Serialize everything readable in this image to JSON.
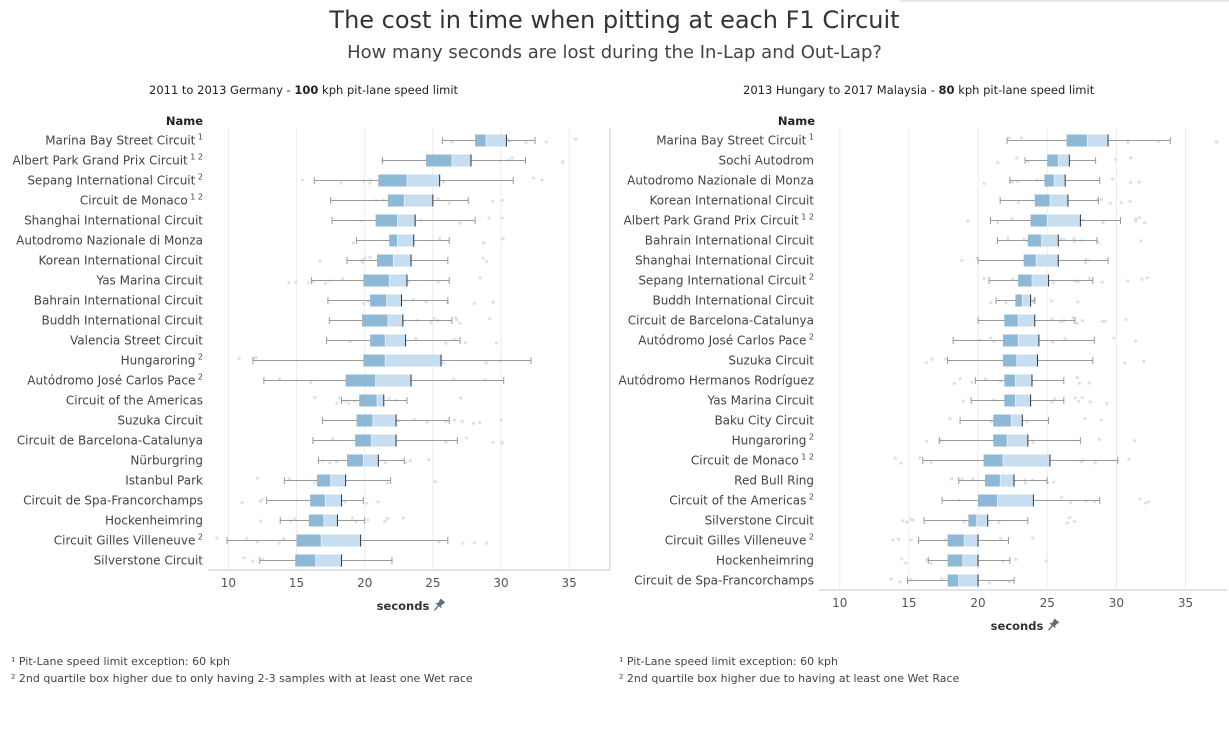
{
  "title": "The cost in time when pitting at each F1 Circuit",
  "subtitle": "How many seconds are lost during the In-Lap and Out-Lap?",
  "left_panel": {
    "title_pre": "2011 to 2013 Germany - ",
    "title_bold": "100",
    "title_post": " kph pit-lane speed limit",
    "row_header": "Name",
    "axis_title": "seconds",
    "footnote1": "¹ Pit-Lane speed limit exception: 60 kph",
    "footnote2": "² 2nd quartile box higher due to only having 2-3 samples with at least one Wet race"
  },
  "right_panel": {
    "title_pre": "2013 Hungary to 2017 Malaysia - ",
    "title_bold": "80",
    "title_post": " kph pit-lane speed limit",
    "row_header": "Name",
    "axis_title": "seconds",
    "footnote1": "¹ Pit-Lane speed limit exception: 60 kph",
    "footnote2": "² 2nd quartile box higher due to having at least one Wet Race"
  },
  "colors": {
    "q2_box": "#8db8d6",
    "q3_box": "#c6def0",
    "whisker": "#9a9a9a",
    "dots": "#d8e2ea",
    "gridline": "#ececec"
  },
  "chart_data": [
    {
      "type": "boxplot",
      "panel": "left",
      "xlabel": "seconds",
      "ylabel": "Name",
      "xlim": [
        8.5,
        38
      ],
      "xticks": [
        10,
        15,
        20,
        25,
        30,
        35
      ],
      "grid": true,
      "rows": [
        {
          "name": "Marina Bay Street Circuit",
          "sup": "1",
          "min": 25.7,
          "q1": 28.1,
          "median": 28.9,
          "q3": 30.4,
          "max": 32.5
        },
        {
          "name": "Albert Park Grand Prix Circuit",
          "sup": "1 2",
          "min": 21.3,
          "q1": 24.5,
          "median": 26.4,
          "q3": 27.8,
          "max": 31.8
        },
        {
          "name": "Sepang International Circuit",
          "sup": "2",
          "min": 16.3,
          "q1": 21.0,
          "median": 23.1,
          "q3": 25.5,
          "max": 30.9
        },
        {
          "name": "Circuit de Monaco",
          "sup": "1 2",
          "min": 17.5,
          "q1": 21.7,
          "median": 22.9,
          "q3": 25.0,
          "max": 27.6
        },
        {
          "name": "Shanghai International Circuit",
          "sup": "",
          "min": 17.6,
          "q1": 20.8,
          "median": 22.4,
          "q3": 23.7,
          "max": 28.1
        },
        {
          "name": "Autodromo Nazionale di Monza",
          "sup": "",
          "min": 19.4,
          "q1": 21.8,
          "median": 22.4,
          "q3": 23.6,
          "max": 26.2
        },
        {
          "name": "Korean International Circuit",
          "sup": "",
          "min": 18.7,
          "q1": 20.9,
          "median": 22.1,
          "q3": 23.4,
          "max": 26.1
        },
        {
          "name": "Yas Marina Circuit",
          "sup": "",
          "min": 16.1,
          "q1": 19.9,
          "median": 21.8,
          "q3": 23.1,
          "max": 26.2
        },
        {
          "name": "Bahrain International Circuit",
          "sup": "",
          "min": 17.3,
          "q1": 20.4,
          "median": 21.6,
          "q3": 22.7,
          "max": 26.1
        },
        {
          "name": "Buddh International Circuit",
          "sup": "",
          "min": 17.4,
          "q1": 19.8,
          "median": 21.7,
          "q3": 22.8,
          "max": 26.4
        },
        {
          "name": "Valencia Street Circuit",
          "sup": "",
          "min": 17.2,
          "q1": 20.4,
          "median": 21.5,
          "q3": 23.0,
          "max": 27.0
        },
        {
          "name": "Hungaroring",
          "sup": "2",
          "min": 11.8,
          "q1": 19.9,
          "median": 21.5,
          "q3": 25.6,
          "max": 32.2
        },
        {
          "name": "Autódromo José Carlos Pace",
          "sup": "2",
          "min": 12.6,
          "q1": 18.6,
          "median": 20.8,
          "q3": 23.4,
          "max": 30.2
        },
        {
          "name": "Circuit of the Americas",
          "sup": "",
          "min": 18.3,
          "q1": 19.6,
          "median": 20.9,
          "q3": 21.4,
          "max": 23.1
        },
        {
          "name": "Suzuka Circuit",
          "sup": "",
          "min": 16.9,
          "q1": 19.4,
          "median": 20.6,
          "q3": 22.3,
          "max": 26.2
        },
        {
          "name": "Circuit de Barcelona-Catalunya",
          "sup": "",
          "min": 16.2,
          "q1": 19.3,
          "median": 20.5,
          "q3": 22.3,
          "max": 26.8
        },
        {
          "name": "Nürburgring",
          "sup": "",
          "min": 16.6,
          "q1": 18.7,
          "median": 19.9,
          "q3": 21.0,
          "max": 22.9
        },
        {
          "name": "Istanbul Park",
          "sup": "",
          "min": 14.1,
          "q1": 16.5,
          "median": 17.5,
          "q3": 18.6,
          "max": 21.9
        },
        {
          "name": "Circuit de Spa-Francorchamps",
          "sup": "",
          "min": 12.8,
          "q1": 16.0,
          "median": 17.1,
          "q3": 18.3,
          "max": 19.9
        },
        {
          "name": "Hockenheimring",
          "sup": "",
          "min": 13.8,
          "q1": 15.9,
          "median": 17.0,
          "q3": 18.0,
          "max": 20.0
        },
        {
          "name": "Circuit Gilles Villeneuve",
          "sup": "2",
          "min": 9.9,
          "q1": 15.0,
          "median": 16.8,
          "q3": 19.7,
          "max": 26.1
        },
        {
          "name": "Silverstone Circuit",
          "sup": "",
          "min": 12.3,
          "q1": 14.9,
          "median": 16.4,
          "q3": 18.3,
          "max": 22.0
        }
      ]
    },
    {
      "type": "boxplot",
      "panel": "right",
      "xlabel": "seconds",
      "ylabel": "Name",
      "xlim": [
        8.5,
        38
      ],
      "xticks": [
        10,
        15,
        20,
        25,
        30,
        35
      ],
      "grid": true,
      "rows": [
        {
          "name": "Marina Bay Street Circuit",
          "sup": "1",
          "min": 22.1,
          "q1": 26.4,
          "median": 27.9,
          "q3": 29.4,
          "max": 33.9
        },
        {
          "name": "Sochi Autodrom",
          "sup": "",
          "min": 23.4,
          "q1": 25.0,
          "median": 25.8,
          "q3": 26.6,
          "max": 28.5
        },
        {
          "name": "Autodromo Nazionale di Monza",
          "sup": "",
          "min": 22.3,
          "q1": 24.8,
          "median": 25.5,
          "q3": 26.3,
          "max": 28.8
        },
        {
          "name": "Korean International Circuit",
          "sup": "",
          "min": 21.6,
          "q1": 24.1,
          "median": 25.2,
          "q3": 26.5,
          "max": 28.7
        },
        {
          "name": "Albert Park Grand Prix Circuit",
          "sup": "1 2",
          "min": 20.9,
          "q1": 23.8,
          "median": 25.0,
          "q3": 27.4,
          "max": 30.3
        },
        {
          "name": "Bahrain International Circuit",
          "sup": "",
          "min": 21.4,
          "q1": 23.6,
          "median": 24.6,
          "q3": 25.8,
          "max": 28.6
        },
        {
          "name": "Shanghai International Circuit",
          "sup": "",
          "min": 20.0,
          "q1": 23.3,
          "median": 24.2,
          "q3": 25.8,
          "max": 29.4
        },
        {
          "name": "Sepang International Circuit",
          "sup": "2",
          "min": 20.8,
          "q1": 22.9,
          "median": 23.9,
          "q3": 25.1,
          "max": 28.3
        },
        {
          "name": "Buddh International Circuit",
          "sup": "",
          "min": 21.3,
          "q1": 22.7,
          "median": 23.2,
          "q3": 23.8,
          "max": 24.1
        },
        {
          "name": "Circuit de Barcelona-Catalunya",
          "sup": "",
          "min": 20.0,
          "q1": 21.9,
          "median": 22.9,
          "q3": 24.1,
          "max": 27.0
        },
        {
          "name": "Autódromo José Carlos Pace",
          "sup": "2",
          "min": 18.2,
          "q1": 21.8,
          "median": 22.9,
          "q3": 24.4,
          "max": 28.4
        },
        {
          "name": "Suzuka Circuit",
          "sup": "",
          "min": 17.8,
          "q1": 21.8,
          "median": 22.8,
          "q3": 24.3,
          "max": 28.3
        },
        {
          "name": "Autódromo Hermanos Rodríguez",
          "sup": "",
          "min": 19.8,
          "q1": 21.9,
          "median": 22.7,
          "q3": 23.9,
          "max": 26.2
        },
        {
          "name": "Yas Marina Circuit",
          "sup": "",
          "min": 19.5,
          "q1": 21.9,
          "median": 22.7,
          "q3": 23.8,
          "max": 26.2
        },
        {
          "name": "Baku City Circuit",
          "sup": "",
          "min": 18.7,
          "q1": 21.1,
          "median": 22.4,
          "q3": 23.2,
          "max": 25.1
        },
        {
          "name": "Hungaroring",
          "sup": "2",
          "min": 17.2,
          "q1": 21.1,
          "median": 22.1,
          "q3": 23.6,
          "max": 27.4
        },
        {
          "name": "Circuit de Monaco",
          "sup": "1 2",
          "min": 16.0,
          "q1": 20.4,
          "median": 21.8,
          "q3": 25.2,
          "max": 30.1
        },
        {
          "name": "Red Bull Ring",
          "sup": "",
          "min": 18.6,
          "q1": 20.5,
          "median": 21.6,
          "q3": 22.6,
          "max": 25.0
        },
        {
          "name": "Circuit of the Americas",
          "sup": "2",
          "min": 17.4,
          "q1": 20.0,
          "median": 21.4,
          "q3": 24.0,
          "max": 28.8
        },
        {
          "name": "Silverstone Circuit",
          "sup": "",
          "min": 16.1,
          "q1": 19.3,
          "median": 19.9,
          "q3": 20.7,
          "max": 23.6
        },
        {
          "name": "Circuit Gilles Villeneuve",
          "sup": "2",
          "min": 15.7,
          "q1": 17.8,
          "median": 19.0,
          "q3": 20.0,
          "max": 22.2
        },
        {
          "name": "Hockenheimring",
          "sup": "",
          "min": 16.4,
          "q1": 17.8,
          "median": 18.9,
          "q3": 20.0,
          "max": 22.3
        },
        {
          "name": "Circuit de Spa-Francorchamps",
          "sup": "",
          "min": 14.9,
          "q1": 17.8,
          "median": 18.6,
          "q3": 20.0,
          "max": 22.6
        }
      ]
    }
  ]
}
